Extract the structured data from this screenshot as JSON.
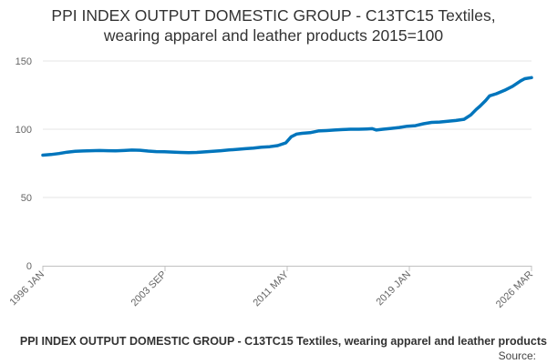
{
  "chart_data": {
    "type": "line",
    "title_line1": "PPI INDEX OUTPUT DOMESTIC GROUP - C13TC15 Textiles,",
    "title_line2": "wearing apparel and leather products 2015=100",
    "ylim": [
      0,
      150
    ],
    "yticks": [
      "0",
      "50",
      "100",
      "150"
    ],
    "xticks": [
      "1996 JAN",
      "2003 SEP",
      "2011 MAY",
      "2019 JAN",
      "2026 MAR"
    ],
    "x_range": [
      "1996-01",
      "2026-03"
    ],
    "grid": true,
    "series": [
      {
        "color": "#0075bc",
        "points": [
          [
            "1996-01",
            81.0
          ],
          [
            "1996-07",
            81.5
          ],
          [
            "1997-01",
            82.2
          ],
          [
            "1997-07",
            83.2
          ],
          [
            "1998-01",
            83.8
          ],
          [
            "1998-07",
            84.1
          ],
          [
            "1999-01",
            84.3
          ],
          [
            "1999-07",
            84.4
          ],
          [
            "2000-01",
            84.3
          ],
          [
            "2000-07",
            84.2
          ],
          [
            "2001-01",
            84.4
          ],
          [
            "2001-07",
            84.7
          ],
          [
            "2002-01",
            84.6
          ],
          [
            "2002-07",
            84.0
          ],
          [
            "2003-01",
            83.6
          ],
          [
            "2003-07",
            83.5
          ],
          [
            "2004-01",
            83.3
          ],
          [
            "2004-07",
            83.0
          ],
          [
            "2005-01",
            82.8
          ],
          [
            "2005-07",
            83.0
          ],
          [
            "2006-01",
            83.4
          ],
          [
            "2006-07",
            83.8
          ],
          [
            "2007-01",
            84.3
          ],
          [
            "2007-07",
            84.8
          ],
          [
            "2008-01",
            85.3
          ],
          [
            "2008-07",
            85.7
          ],
          [
            "2009-01",
            86.2
          ],
          [
            "2009-07",
            86.8
          ],
          [
            "2010-01",
            87.2
          ],
          [
            "2010-07",
            88.0
          ],
          [
            "2011-01",
            90.0
          ],
          [
            "2011-05",
            94.5
          ],
          [
            "2011-09",
            96.5
          ],
          [
            "2012-01",
            97.0
          ],
          [
            "2012-07",
            97.5
          ],
          [
            "2013-01",
            98.7
          ],
          [
            "2013-07",
            99.0
          ],
          [
            "2014-01",
            99.4
          ],
          [
            "2014-07",
            99.7
          ],
          [
            "2015-01",
            100.0
          ],
          [
            "2015-07",
            100.0
          ],
          [
            "2016-01",
            100.2
          ],
          [
            "2016-05",
            100.4
          ],
          [
            "2016-08",
            99.4
          ],
          [
            "2017-01",
            100.0
          ],
          [
            "2017-07",
            100.6
          ],
          [
            "2018-01",
            101.3
          ],
          [
            "2018-07",
            102.2
          ],
          [
            "2019-01",
            102.6
          ],
          [
            "2019-07",
            104.0
          ],
          [
            "2020-01",
            105.0
          ],
          [
            "2020-07",
            105.3
          ],
          [
            "2021-01",
            105.8
          ],
          [
            "2021-07",
            106.4
          ],
          [
            "2022-01",
            107.3
          ],
          [
            "2022-06",
            110.5
          ],
          [
            "2022-10",
            114.5
          ],
          [
            "2023-01",
            117.0
          ],
          [
            "2023-05",
            121.0
          ],
          [
            "2023-08",
            124.5
          ],
          [
            "2024-01",
            126.0
          ],
          [
            "2024-07",
            128.5
          ],
          [
            "2025-01",
            131.5
          ],
          [
            "2025-07",
            135.5
          ],
          [
            "2025-10",
            137.0
          ],
          [
            "2026-03",
            137.8
          ]
        ]
      }
    ]
  },
  "footer": {
    "caption": "PPI INDEX OUTPUT DOMESTIC GROUP - C13TC15 Textiles, wearing apparel and leather products",
    "source": "Source:"
  }
}
